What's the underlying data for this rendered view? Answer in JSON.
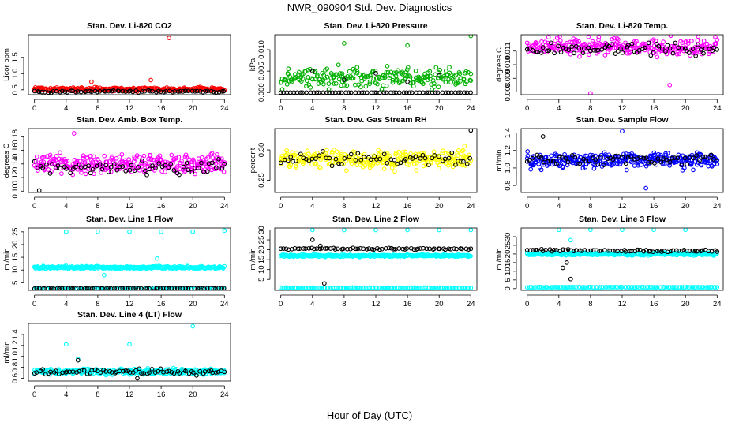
{
  "figure": {
    "title": "NWR_090904  Std. Dev. Diagnostics",
    "xlabel": "Hour of Day (UTC)"
  },
  "chart_data": [
    {
      "type": "scatter",
      "title": "Stan. Dev. Li-820 CO2",
      "ylabel": "Licor ppm",
      "xlim": [
        0,
        24
      ],
      "ylim": [
        0.35,
        2.2
      ],
      "xticks": [
        0,
        4,
        8,
        12,
        16,
        20,
        24
      ],
      "yticks": [
        0.5,
        1.0,
        1.5
      ],
      "series": [
        {
          "color": "#ff0000",
          "center": 0.52,
          "spread": 0.06,
          "n": 260,
          "outliers": [
            [
              17,
              2.1
            ],
            [
              7.2,
              0.75
            ],
            [
              14.7,
              0.8
            ]
          ]
        },
        {
          "color": "#000000",
          "center": 0.45,
          "spread": 0.03,
          "n": 70,
          "outliers": []
        }
      ]
    },
    {
      "type": "scatter",
      "title": "Stan. Dev. Li-820 Pressure",
      "ylabel": "kPa",
      "xlim": [
        0,
        24
      ],
      "ylim": [
        -0.0005,
        0.0135
      ],
      "xticks": [
        0,
        4,
        8,
        12,
        16,
        20,
        24
      ],
      "yticks": [
        0.0,
        0.005,
        0.01
      ],
      "series": [
        {
          "color": "#00b000",
          "center": 0.0035,
          "spread": 0.0022,
          "n": 240,
          "outliers": [
            [
              8,
              0.0115
            ],
            [
              16,
              0.011
            ],
            [
              24,
              0.0132
            ]
          ]
        },
        {
          "color": "#000000",
          "center": 0.0,
          "spread": 0.0,
          "n": 60,
          "outliers": [
            [
              4,
              0.005
            ],
            [
              8,
              0.003
            ],
            [
              12,
              0.0045
            ],
            [
              16,
              0.0025
            ],
            [
              20,
              0.004
            ]
          ]
        }
      ]
    },
    {
      "type": "scatter",
      "title": "Stan. Dev. Li-820 Temp.",
      "ylabel": "degrees C",
      "xlim": [
        0,
        24
      ],
      "ylim": [
        0.0078,
        0.0122
      ],
      "xticks": [
        0,
        4,
        8,
        12,
        16,
        20,
        24
      ],
      "yticks": [
        0.008,
        0.009,
        0.01,
        0.011
      ],
      "series": [
        {
          "color": "#ff00ff",
          "center": 0.0113,
          "spread": 0.0006,
          "n": 280,
          "outliers": [
            [
              8,
              0.0079
            ],
            [
              18,
              0.0085
            ]
          ]
        },
        {
          "color": "#000000",
          "center": 0.0112,
          "spread": 0.0005,
          "n": 70,
          "outliers": []
        }
      ]
    },
    {
      "type": "scatter",
      "title": "Stan. Dev. Amb. Box Temp.",
      "ylabel": "degrees C",
      "xlim": [
        0,
        24
      ],
      "ylim": [
        0.098,
        0.192
      ],
      "xticks": [
        0,
        4,
        8,
        12,
        16,
        20,
        24
      ],
      "yticks": [
        0.1,
        0.12,
        0.14,
        0.16,
        0.18
      ],
      "series": [
        {
          "color": "#ff00ff",
          "center": 0.14,
          "spread": 0.014,
          "n": 300,
          "outliers": [
            [
              5,
              0.185
            ]
          ]
        },
        {
          "color": "#000000",
          "center": 0.135,
          "spread": 0.01,
          "n": 65,
          "outliers": [
            [
              0.6,
              0.101
            ]
          ]
        }
      ]
    },
    {
      "type": "scatter",
      "title": "Stan. Dev. Gas Stream RH",
      "ylabel": "percent",
      "xlim": [
        0,
        24
      ],
      "ylim": [
        0.23,
        0.335
      ],
      "xticks": [
        0,
        4,
        8,
        12,
        16,
        20,
        24
      ],
      "yticks": [
        0.25,
        0.3
      ],
      "series": [
        {
          "color": "#ffff00",
          "center": 0.285,
          "spread": 0.014,
          "n": 300,
          "outliers": []
        },
        {
          "color": "#000000",
          "center": 0.285,
          "spread": 0.01,
          "n": 60,
          "outliers": [
            [
              24,
              0.332
            ]
          ]
        }
      ]
    },
    {
      "type": "scatter",
      "title": "Stan. Dev. Sample Flow",
      "ylabel": "ml/min",
      "xlim": [
        0,
        24
      ],
      "ylim": [
        0.72,
        1.45
      ],
      "xticks": [
        0,
        4,
        8,
        12,
        16,
        20,
        24
      ],
      "yticks": [
        0.8,
        1.0,
        1.2,
        1.4
      ],
      "series": [
        {
          "color": "#0000ff",
          "center": 1.09,
          "spread": 0.09,
          "n": 320,
          "outliers": [
            [
              12,
              1.42
            ],
            [
              15,
              0.77
            ]
          ]
        },
        {
          "color": "#000000",
          "center": 1.1,
          "spread": 0.06,
          "n": 65,
          "outliers": [
            [
              2,
              1.36
            ]
          ]
        }
      ]
    },
    {
      "type": "scatter",
      "title": "Stan. Dev. Line 1 Flow",
      "ylabel": "ml/min",
      "xlim": [
        0,
        24
      ],
      "ylim": [
        2,
        26.5
      ],
      "xticks": [
        0,
        4,
        8,
        12,
        16,
        20,
        24
      ],
      "yticks": [
        5,
        10,
        15,
        20,
        25
      ],
      "series": [
        {
          "color": "#00ffff",
          "center": 11.0,
          "spread": 0.5,
          "n": 320,
          "outliers": [
            [
              4,
              25
            ],
            [
              8,
              25
            ],
            [
              12,
              25
            ],
            [
              16,
              25
            ],
            [
              20,
              25
            ],
            [
              24,
              25.5
            ],
            [
              8.8,
              8
            ],
            [
              15.5,
              14.5
            ]
          ]
        },
        {
          "color": "#00ffff",
          "center": 2.5,
          "spread": 0.08,
          "n": 120,
          "outliers": []
        },
        {
          "color": "#000000",
          "center": 2.8,
          "spread": 0.15,
          "n": 70,
          "outliers": []
        }
      ]
    },
    {
      "type": "scatter",
      "title": "Stan. Dev. Line 2 Flow",
      "ylabel": "ml/min",
      "xlim": [
        0,
        24
      ],
      "ylim": [
        -0.5,
        31
      ],
      "xticks": [
        0,
        4,
        8,
        12,
        16,
        20,
        24
      ],
      "yticks": [
        5,
        10,
        15,
        20,
        25,
        30
      ],
      "series": [
        {
          "color": "#00ffff",
          "center": 17.0,
          "spread": 0.5,
          "n": 320,
          "outliers": [
            [
              4,
              30
            ],
            [
              8,
              30
            ],
            [
              12,
              30
            ],
            [
              16,
              30
            ],
            [
              20,
              30
            ],
            [
              24,
              30
            ]
          ]
        },
        {
          "color": "#00ffff",
          "center": 0.8,
          "spread": 0.1,
          "n": 120,
          "outliers": []
        },
        {
          "color": "#000000",
          "center": 20.5,
          "spread": 0.4,
          "n": 70,
          "outliers": [
            [
              5.5,
              3
            ],
            [
              4,
              25
            ],
            [
              5,
              22
            ]
          ]
        }
      ]
    },
    {
      "type": "scatter",
      "title": "Stan. Dev. Line 3 Flow",
      "ylabel": "ml/min",
      "xlim": [
        0,
        24
      ],
      "ylim": [
        -1,
        35
      ],
      "xticks": [
        0,
        4,
        8,
        12,
        16,
        20,
        24
      ],
      "yticks": [
        0,
        5,
        10,
        15,
        20,
        25,
        30
      ],
      "series": [
        {
          "color": "#00ffff",
          "center": 20.0,
          "spread": 0.8,
          "n": 320,
          "outliers": [
            [
              4,
              34
            ],
            [
              8,
              34
            ],
            [
              12,
              34
            ],
            [
              16,
              34
            ],
            [
              20,
              34
            ],
            [
              5.5,
              28
            ]
          ]
        },
        {
          "color": "#00ffff",
          "center": 0.8,
          "spread": 0.1,
          "n": 120,
          "outliers": []
        },
        {
          "color": "#000000",
          "center": 22.0,
          "spread": 0.7,
          "n": 70,
          "outliers": [
            [
              5.5,
              5.5
            ],
            [
              4.5,
              12
            ],
            [
              5,
              15
            ]
          ]
        }
      ]
    },
    {
      "type": "scatter",
      "title": "Stan. Dev. Line 4 (LT) Flow",
      "ylabel": "ml/min",
      "xlim": [
        0,
        24
      ],
      "ylim": [
        0.55,
        1.6
      ],
      "xticks": [
        0,
        4,
        8,
        12,
        16,
        20,
        24
      ],
      "yticks": [
        0.6,
        0.8,
        1.0,
        1.2,
        1.4
      ],
      "series": [
        {
          "color": "#00ffff",
          "center": 0.72,
          "spread": 0.05,
          "n": 320,
          "outliers": [
            [
              4,
              1.22
            ],
            [
              12,
              1.22
            ],
            [
              20,
              1.55
            ],
            [
              5.5,
              0.95
            ]
          ]
        },
        {
          "color": "#000000",
          "center": 0.72,
          "spread": 0.05,
          "n": 70,
          "outliers": [
            [
              5.5,
              0.93
            ],
            [
              13,
              0.6
            ]
          ]
        }
      ]
    }
  ]
}
